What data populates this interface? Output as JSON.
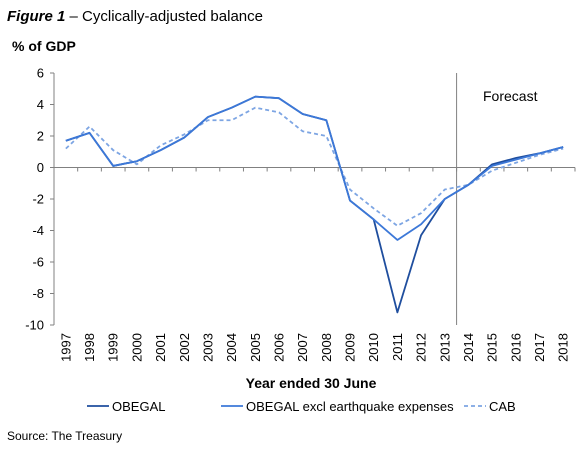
{
  "figure": {
    "label": "Figure 1",
    "separator": " – ",
    "title": "Cyclically-adjusted balance"
  },
  "source": "Source: The Treasury",
  "chart_data": {
    "type": "line",
    "ylabel": "% of GDP",
    "xlabel": "Year ended 30 June",
    "ylim": [
      -10,
      6
    ],
    "yticks": [
      6,
      4,
      2,
      0,
      -2,
      -4,
      -6,
      -8,
      -10
    ],
    "x": [
      "1997",
      "1998",
      "1999",
      "2000",
      "2001",
      "2002",
      "2003",
      "2004",
      "2005",
      "2006",
      "2007",
      "2008",
      "2009",
      "2010",
      "2011",
      "2012",
      "2013",
      "2014",
      "2015",
      "2016",
      "2017",
      "2018"
    ],
    "grid": false,
    "legend_position": "bottom",
    "annotation": {
      "text": "Forecast",
      "divider_between": [
        "2013",
        "2014"
      ]
    },
    "series": [
      {
        "name": "OBEGAL",
        "color": "#1f4e9e",
        "dash": "solid",
        "values": [
          1.7,
          2.2,
          0.1,
          0.4,
          1.1,
          1.9,
          3.2,
          3.8,
          4.5,
          4.4,
          3.4,
          3.0,
          -2.1,
          -3.3,
          -9.2,
          -4.3,
          -2.0,
          -1.1,
          0.2,
          0.6,
          0.9,
          1.3
        ]
      },
      {
        "name": "OBEGAL excl earthquake expenses",
        "color": "#3c78d8",
        "dash": "solid",
        "values": [
          1.7,
          2.2,
          0.1,
          0.4,
          1.1,
          1.9,
          3.2,
          3.8,
          4.5,
          4.4,
          3.4,
          3.0,
          -2.1,
          -3.3,
          -4.6,
          -3.6,
          -2.0,
          -1.1,
          0.1,
          0.5,
          0.9,
          1.3
        ]
      },
      {
        "name": "CAB",
        "color": "#7da5e3",
        "dash": "dashed",
        "values": [
          1.2,
          2.6,
          1.1,
          0.2,
          1.4,
          2.1,
          3.0,
          3.0,
          3.8,
          3.5,
          2.3,
          2.0,
          -1.4,
          -2.6,
          -3.7,
          -2.9,
          -1.4,
          -1.1,
          -0.2,
          0.3,
          0.8,
          1.2
        ]
      }
    ]
  }
}
